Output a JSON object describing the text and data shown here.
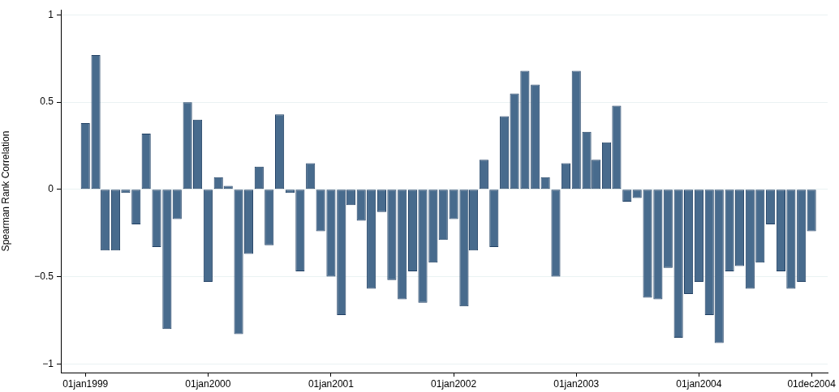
{
  "chart_data": {
    "type": "bar",
    "ylabel": "Spearman Rank Correlation",
    "color": "#486b8d",
    "x": [
      "1999-01",
      "1999-02",
      "1999-03",
      "1999-04",
      "1999-05",
      "1999-06",
      "1999-07",
      "1999-08",
      "1999-09",
      "1999-10",
      "1999-11",
      "1999-12",
      "2000-01",
      "2000-02",
      "2000-03",
      "2000-04",
      "2000-05",
      "2000-06",
      "2000-07",
      "2000-08",
      "2000-09",
      "2000-10",
      "2000-11",
      "2000-12",
      "2001-01",
      "2001-02",
      "2001-03",
      "2001-04",
      "2001-05",
      "2001-06",
      "2001-07",
      "2001-08",
      "2001-09",
      "2001-10",
      "2001-11",
      "2001-12",
      "2002-01",
      "2002-02",
      "2002-03",
      "2002-04",
      "2002-05",
      "2002-06",
      "2002-07",
      "2002-08",
      "2002-09",
      "2002-10",
      "2002-11",
      "2002-12",
      "2003-01",
      "2003-02",
      "2003-03",
      "2003-04",
      "2003-05",
      "2003-06",
      "2003-07",
      "2003-08",
      "2003-09",
      "2003-10",
      "2003-11",
      "2003-12",
      "2004-01",
      "2004-02",
      "2004-03",
      "2004-04",
      "2004-05",
      "2004-06",
      "2004-07",
      "2004-08",
      "2004-09",
      "2004-10",
      "2004-11",
      "2004-12"
    ],
    "values": [
      0.38,
      0.77,
      -0.35,
      -0.35,
      -0.02,
      -0.2,
      0.32,
      -0.33,
      -0.8,
      -0.17,
      0.5,
      0.4,
      -0.53,
      0.07,
      0.02,
      -0.83,
      -0.37,
      0.13,
      -0.32,
      0.43,
      -0.02,
      -0.47,
      0.15,
      -0.24,
      -0.5,
      -0.72,
      -0.09,
      -0.18,
      -0.57,
      -0.13,
      -0.52,
      -0.63,
      -0.47,
      -0.65,
      -0.42,
      -0.29,
      -0.17,
      -0.67,
      -0.35,
      0.17,
      -0.33,
      0.42,
      0.55,
      0.68,
      0.6,
      0.07,
      -0.5,
      0.15,
      0.68,
      0.33,
      0.17,
      0.27,
      0.48,
      -0.07,
      -0.05,
      -0.62,
      -0.63,
      -0.45,
      -0.85,
      -0.6,
      -0.53,
      -0.72,
      -0.88,
      -0.47,
      -0.44,
      -0.57,
      -0.42,
      -0.2,
      -0.47,
      -0.57,
      -0.53,
      -0.24
    ],
    "xlim": [
      "1998-10-20",
      "2005-01-18"
    ],
    "xticks": [
      {
        "value": "1999-01-01",
        "label": "01jan1999"
      },
      {
        "value": "2000-01-01",
        "label": "01jan2000"
      },
      {
        "value": "2001-01-01",
        "label": "01jan2001"
      },
      {
        "value": "2002-01-01",
        "label": "01jan2002"
      },
      {
        "value": "2003-01-01",
        "label": "01jan2003"
      },
      {
        "value": "2004-01-01",
        "label": "01jan2004"
      },
      {
        "value": "2004-12-01",
        "label": "01dec2004"
      }
    ],
    "ylim": [
      -1.05,
      1.03
    ],
    "yticks": [
      {
        "value": -1,
        "label": "−1"
      },
      {
        "value": -0.5,
        "label": "−0.5"
      },
      0,
      0.5,
      1
    ],
    "grid": "y"
  }
}
